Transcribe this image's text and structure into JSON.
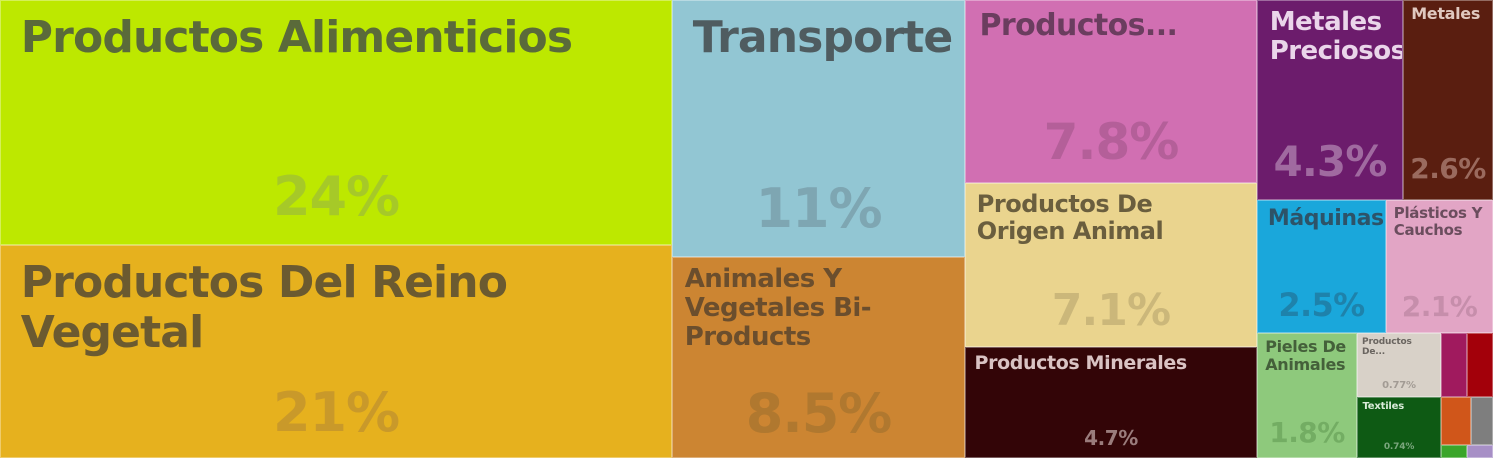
{
  "chart_data": {
    "type": "treemap",
    "title": "",
    "items": [
      {
        "label": "Productos Alimenticios",
        "share_label": "24%",
        "value": 24,
        "color": "#bde800",
        "text_color": "#5a6a3a",
        "share_color": "#a6c928"
      },
      {
        "label": "Productos Del Reino Vegetal",
        "share_label": "21%",
        "value": 21,
        "color": "#e6b11e",
        "text_color": "#6b5a30",
        "share_color": "#c9992a"
      },
      {
        "label": "Transporte",
        "share_label": "11%",
        "value": 11,
        "color": "#92c6d3",
        "text_color": "#4f5c60",
        "share_color": "#7ea6b2"
      },
      {
        "label": "Animales Y Vegetales Bi-Products",
        "share_label": "8.5%",
        "value": 8.5,
        "color": "#cc8532",
        "text_color": "#6b4e2d",
        "share_color": "#b0782f"
      },
      {
        "label": "Productos...",
        "share_label": "7.8%",
        "value": 7.8,
        "color": "#d16fb2",
        "text_color": "#6b3d5f",
        "share_color": "#b45f99"
      },
      {
        "label": "Productos De Origen Animal",
        "share_label": "7.1%",
        "value": 7.1,
        "color": "#ead48e",
        "text_color": "#6a5e3e",
        "share_color": "#cbb77a"
      },
      {
        "label": "Productos Minerales",
        "share_label": "4.7%",
        "value": 4.7,
        "color": "#330507",
        "text_color": "#d9c3c3",
        "share_color": "#9a7c7c"
      },
      {
        "label": "Metales Preciosos",
        "share_label": "4.3%",
        "value": 4.3,
        "color": "#6c1c6c",
        "text_color": "#ead5ea",
        "share_color": "#a06aa0"
      },
      {
        "label": "Metales",
        "share_label": "2.6%",
        "value": 2.6,
        "color": "#5a1e10",
        "text_color": "#e0c8bf",
        "share_color": "#9a6a5e"
      },
      {
        "label": "Máquinas",
        "share_label": "2.5%",
        "value": 2.5,
        "color": "#1aa7db",
        "text_color": "#2d5368",
        "share_color": "#1e82ab"
      },
      {
        "label": "Plásticos Y Cauchos",
        "share_label": "2.1%",
        "value": 2.1,
        "color": "#e2a5c5",
        "text_color": "#6b4d5e",
        "share_color": "#c68eab"
      },
      {
        "label": "Pieles De Animales",
        "share_label": "1.8%",
        "value": 1.8,
        "color": "#8ec97c",
        "text_color": "#44603a",
        "share_color": "#73ad63"
      },
      {
        "label": "Productos De...",
        "share_label": "0.77%",
        "value": 0.77,
        "color": "#d8d1c8",
        "text_color": "#6a6560",
        "share_color": "#a29b94"
      },
      {
        "label": "Textiles",
        "share_label": "0.74%",
        "value": 0.74,
        "color": "#0e5a14",
        "text_color": "#d8ead8",
        "share_color": "#7aa67d"
      },
      {
        "label": "",
        "share_label": "",
        "value": 0.4,
        "color": "#a01a5e",
        "text_color": "#ffffff",
        "share_color": "#ffffff"
      },
      {
        "label": "",
        "share_label": "",
        "value": 0.38,
        "color": "#a3000a",
        "text_color": "#ffffff",
        "share_color": "#ffffff"
      },
      {
        "label": "",
        "share_label": "",
        "value": 0.3,
        "color": "#d0561a",
        "text_color": "#ffffff",
        "share_color": "#ffffff"
      },
      {
        "label": "",
        "share_label": "",
        "value": 0.3,
        "color": "#7e7e7e",
        "text_color": "#ffffff",
        "share_color": "#ffffff"
      },
      {
        "label": "",
        "share_label": "",
        "value": 0.1,
        "color": "#3aa52a",
        "text_color": "#ffffff",
        "share_color": "#ffffff"
      },
      {
        "label": "",
        "share_label": "",
        "value": 0.1,
        "color": "#a78fc6",
        "text_color": "#ffffff",
        "share_color": "#ffffff"
      }
    ]
  }
}
